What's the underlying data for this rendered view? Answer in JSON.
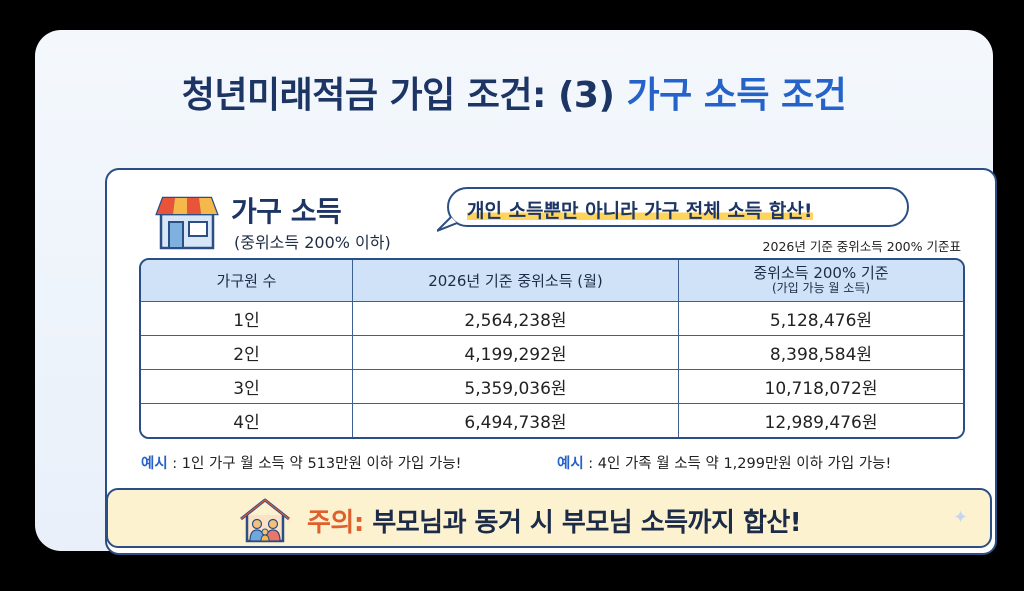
{
  "title": {
    "main": "청년미래적금 가입 조건: (3)",
    "accent": "가구 소득 조건"
  },
  "section": {
    "title": "가구 소득",
    "subtitle": "(중위소득 200% 이하)"
  },
  "callout": {
    "text": "개인 소득뿐만 아니라 가구 전체 소득 합산!"
  },
  "table_note": "2026년 기준 중위소득 200% 기준표",
  "table": {
    "headers": [
      "가구원 수",
      "2026년 기준 중위소득 (월)",
      "중위소득 200% 기준",
      "(가입 가능 월 소득)"
    ],
    "rows": [
      [
        "1인",
        "2,564,238원",
        "5,128,476원"
      ],
      [
        "2인",
        "4,199,292원",
        "8,398,584원"
      ],
      [
        "3인",
        "5,359,036원",
        "10,718,072원"
      ],
      [
        "4인",
        "6,494,738원",
        "12,989,476원"
      ]
    ]
  },
  "examples": [
    {
      "label": "예시",
      "text": ": 1인 가구 월 소득 약 513만원 이하 가입 가능!"
    },
    {
      "label": "예시",
      "text": ": 4인 가족 월 소득 약 1,299만원 이하 가입 가능!"
    }
  ],
  "caution": {
    "label": "주의:",
    "text": "부모님과 동거 시 부모님 소득까지 합산!"
  },
  "icons": [
    "store-icon",
    "house-family-icon",
    "sparkle-icon"
  ],
  "colors": {
    "navy": "#1c3564",
    "accent_blue": "#2563c9",
    "warning_orange": "#e0602d",
    "header_blue": "#cfe2f7",
    "caution_bg": "#fdf2cf",
    "highlight_yellow": "#ffd45c"
  }
}
